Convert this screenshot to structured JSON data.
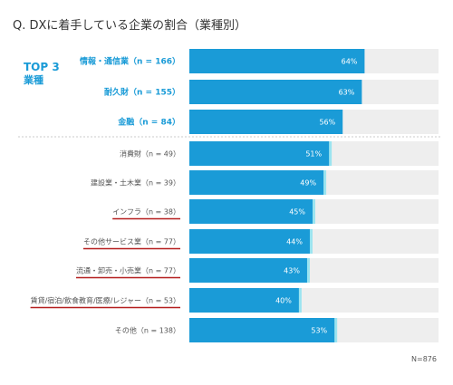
{
  "chart_data": {
    "type": "bar",
    "orientation": "horizontal",
    "title": "Q. DXに着手している企業の割合（業種別）",
    "highlight_label_line1": "TOP 3",
    "highlight_label_line2": "業種",
    "categories": [
      "情報・通信業（n = 166）",
      "耐久財（n = 155）",
      "金融（n = 84）",
      "消費財（n = 49）",
      "建設業・土木業（n = 39）",
      "インフラ（n = 38）",
      "その他サービス業（n = 77）",
      "流通・卸売・小売業（n = 77）",
      "賃貸/宿泊/飲食教育/医療/レジャー（n = 53）",
      "その他（n = 138）"
    ],
    "values": [
      64,
      63,
      56,
      51,
      49,
      45,
      44,
      43,
      40,
      53
    ],
    "value_labels": [
      "64%",
      "63%",
      "56%",
      "51%",
      "49%",
      "45%",
      "44%",
      "43%",
      "40%",
      "53%"
    ],
    "top3_count": 3,
    "underlined": [
      5,
      6,
      7,
      8
    ],
    "xlim": [
      0,
      100
    ],
    "note": "N=876",
    "colors": {
      "bar": "#1a9bd7",
      "track": "#eeeeee",
      "top_label": "#1a9bd7",
      "underline": "#b41e1e",
      "text": "#555555",
      "value_text": "#ffffff",
      "glow": "#9be4f0"
    }
  }
}
